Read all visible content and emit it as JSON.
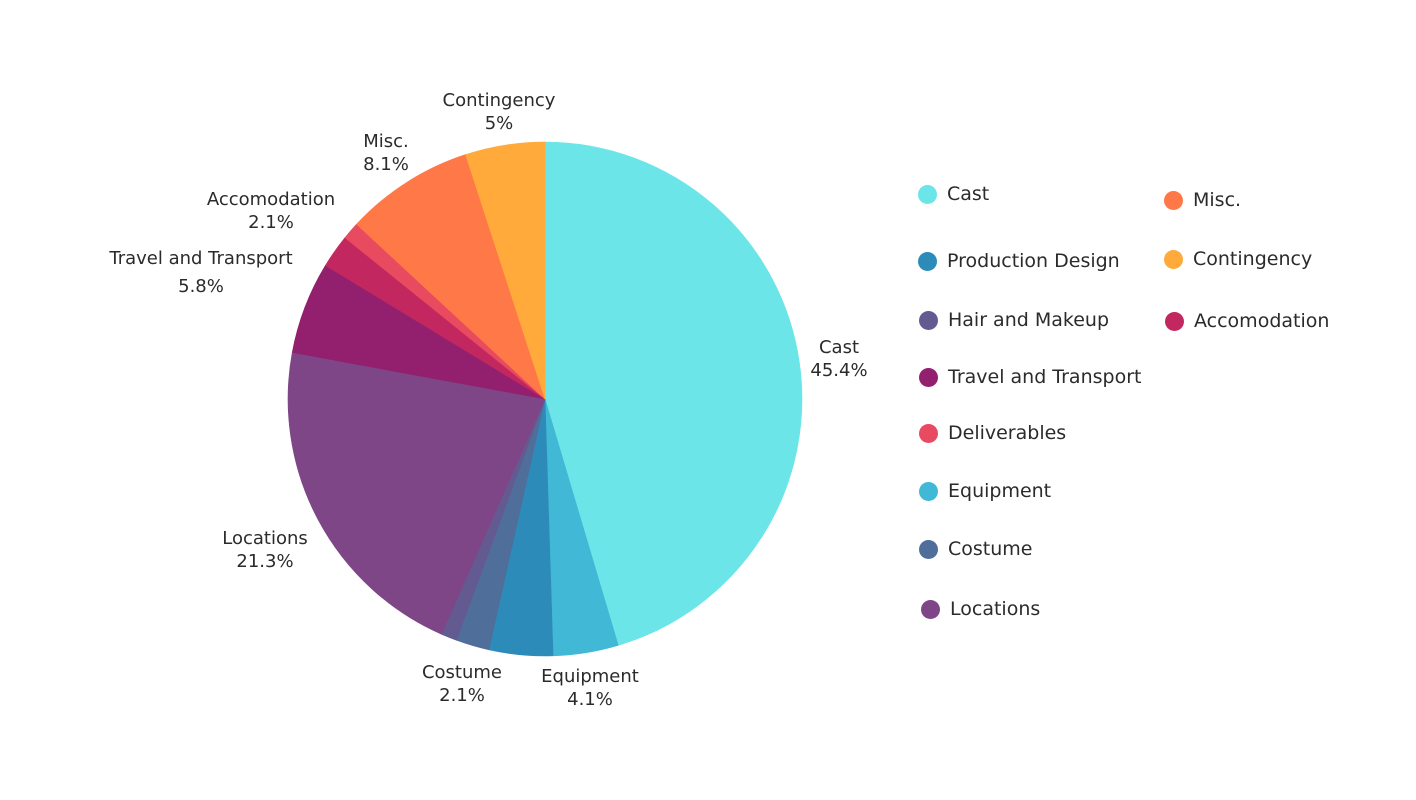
{
  "chart_data": {
    "type": "pie",
    "title": "",
    "start_angle_deg": 0,
    "direction": "clockwise",
    "slices": [
      {
        "label": "Cast",
        "value": 45.4,
        "color": "#6ce5e8",
        "display": "45.4%",
        "show_label": true
      },
      {
        "label": "Equipment",
        "value": 4.1,
        "color": "#41b8d5",
        "display": "4.1%",
        "show_label": true
      },
      {
        "label": "Production Design",
        "value": 4.0,
        "color": "#2d8bba",
        "display": "",
        "show_label": false
      },
      {
        "label": "Costume",
        "value": 2.1,
        "color": "#506e9a",
        "display": "2.1%",
        "show_label": true
      },
      {
        "label": "Hair and Makeup",
        "value": 1.0,
        "color": "#635a92",
        "display": "",
        "show_label": false
      },
      {
        "label": "Locations",
        "value": 21.3,
        "color": "#7e4587",
        "display": "21.3%",
        "show_label": true
      },
      {
        "label": "Travel and Transport",
        "value": 5.8,
        "color": "#931f6f",
        "display": "5.8%",
        "show_label": true
      },
      {
        "label": "Accomodation",
        "value": 2.1,
        "color": "#c2285f",
        "display": "2.1%",
        "show_label": true
      },
      {
        "label": "Deliverables",
        "value": 1.1,
        "color": "#e84a5f",
        "display": "",
        "show_label": false
      },
      {
        "label": "Misc.",
        "value": 8.1,
        "color": "#ff7847",
        "display": "8.1%",
        "show_label": true
      },
      {
        "label": "Contingency",
        "value": 5.0,
        "color": "#ffaa3b",
        "display": "5%",
        "show_label": true
      }
    ],
    "legend_placement": "right",
    "legend": {
      "column1": [
        "Cast",
        "Production Design",
        "Hair and Makeup",
        "Travel and Transport",
        "Deliverables",
        "Equipment",
        "Costume",
        "Locations"
      ],
      "column2": [
        "Misc.",
        "Contingency",
        "Accomodation"
      ]
    }
  }
}
